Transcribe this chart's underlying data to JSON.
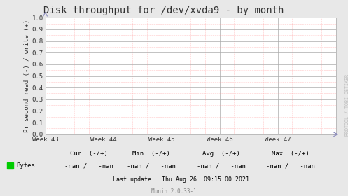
{
  "title": "Disk throughput for /dev/xvda9 - by month",
  "ylabel": "Pr second read (-) / write (+)",
  "xlabel_ticks": [
    "Week 43",
    "Week 44",
    "Week 45",
    "Week 46",
    "Week 47"
  ],
  "ylim": [
    0.0,
    1.0
  ],
  "yticks": [
    0.0,
    0.1,
    0.2,
    0.3,
    0.4,
    0.5,
    0.6,
    0.7,
    0.8,
    0.9,
    1.0
  ],
  "bg_color": "#e8e8e8",
  "plot_bg_color": "#ffffff",
  "grid_color_major": "#aaaaaa",
  "grid_color_minor": "#ff9999",
  "title_color": "#333333",
  "axis_color": "#333333",
  "legend_label": "Bytes",
  "legend_color": "#00cc00",
  "cur_label": "Cur  (-/+)",
  "min_label": "Min  (-/+)",
  "avg_label": "Avg  (-/+)",
  "max_label": "Max  (-/+)",
  "cur_val": "-nan /   -nan",
  "min_val": "-nan /   -nan",
  "avg_val": "-nan /   -nan",
  "max_val": "-nan /   -nan",
  "last_update": "Last update:  Thu Aug 26  09:15:00 2021",
  "munin_version": "Munin 2.0.33-1",
  "rrdtool_label": "RRDTOOL / TOBI OETIKER",
  "title_fontsize": 10,
  "tick_fontsize": 6.5,
  "ylabel_fontsize": 6.5,
  "legend_fontsize": 6.5,
  "footer_fontsize": 6.0,
  "munin_fontsize": 5.5
}
